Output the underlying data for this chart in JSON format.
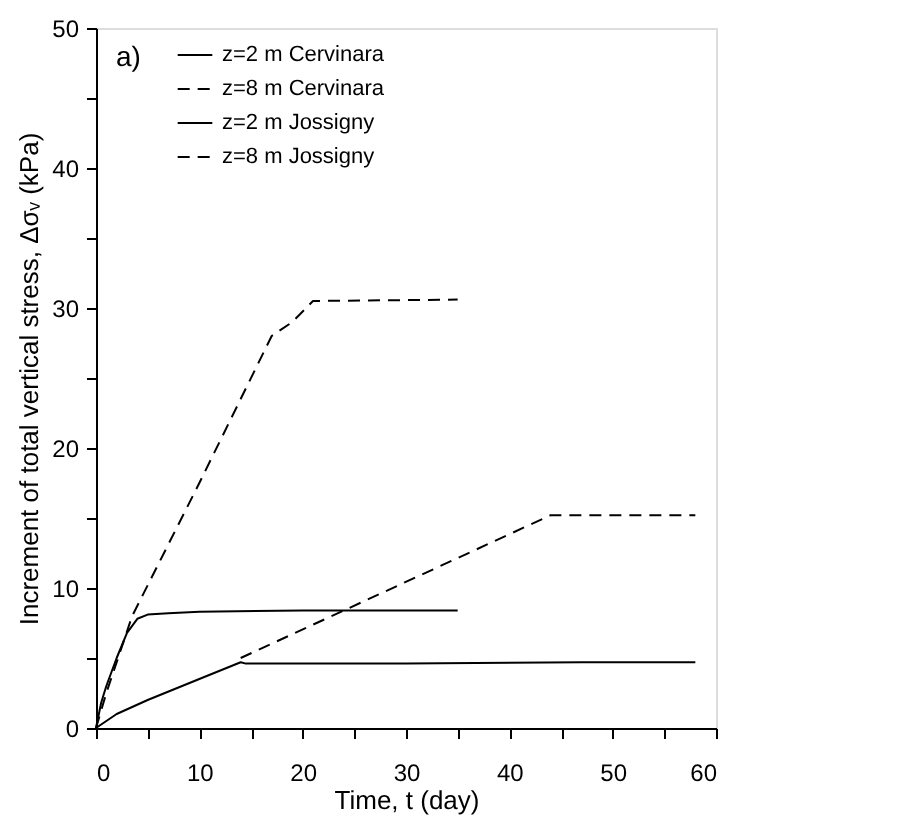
{
  "chart_data": {
    "type": "line",
    "xlabel": "Time, t (day)",
    "ylabel": "Increment of total vertical stress, Δσᵥ (kPa)",
    "annotations": [
      "a)"
    ],
    "xlim": [
      0,
      60
    ],
    "xticks": [
      0,
      {
        "value": 5,
        "label": null
      },
      10,
      {
        "value": 15,
        "label": null
      },
      20,
      {
        "value": 25,
        "label": null
      },
      30,
      {
        "value": 35,
        "label": null
      },
      40,
      {
        "value": 45,
        "label": null
      },
      50,
      {
        "value": 55,
        "label": null
      },
      60
    ],
    "ylim": [
      0,
      50
    ],
    "yticks": [
      0,
      {
        "value": 5,
        "label": null
      },
      10,
      {
        "value": 15,
        "label": null
      },
      20,
      {
        "value": 25,
        "label": null
      },
      30,
      {
        "value": 35,
        "label": null
      },
      40,
      {
        "value": 45,
        "label": null
      },
      50
    ],
    "grid": false,
    "legend": "top left",
    "marker": "none",
    "series": [
      {
        "name": "z=2 m Cervinara",
        "color": "#000000",
        "line_style": "solid",
        "x": [
          0,
          0.5,
          1,
          2,
          3,
          4,
          5,
          7,
          10,
          20,
          35
        ],
        "values": [
          0,
          1.8,
          3,
          5,
          6.8,
          7.8,
          8.1,
          8.2,
          8.3,
          8.4,
          8.4
        ]
      },
      {
        "name": "z=8 m Cervinara",
        "color": "#000000",
        "line_style": "dashed",
        "x": [
          0,
          1,
          3.5,
          10,
          17,
          19,
          21,
          35
        ],
        "values": [
          0,
          2.5,
          8,
          17.5,
          28,
          29,
          30.5,
          30.6
        ]
      },
      {
        "name": "z=2 m Jossigny",
        "color": "#000000",
        "line_style": "solid",
        "x": [
          0,
          2,
          5,
          10,
          14,
          14.5,
          30,
          47,
          58
        ],
        "values": [
          0,
          1,
          2,
          3.5,
          4.7,
          4.6,
          4.6,
          4.7,
          4.7
        ]
      },
      {
        "name": "z=8 m Jossigny",
        "color": "#000000",
        "line_style": "dashed",
        "x": [
          14,
          44,
          58
        ],
        "values": [
          5,
          15.2,
          15.2
        ]
      }
    ]
  }
}
